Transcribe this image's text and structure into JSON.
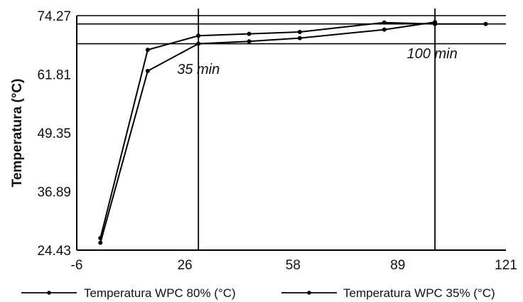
{
  "chart_data": {
    "type": "line",
    "ylabel": "Temperatura (°C)",
    "xlabel": "",
    "x_ticks": [
      "-6",
      "26",
      "58",
      "89",
      "121"
    ],
    "y_ticks": [
      "24.43",
      "36.89",
      "49.35",
      "61.81",
      "74.27"
    ],
    "xlim": [
      -6,
      121
    ],
    "ylim": [
      24.43,
      74.27
    ],
    "grid": false,
    "legend_position": "bottom",
    "series": [
      {
        "name": "Temperatura WPC 80% (°C)",
        "x": [
          1,
          15,
          30,
          45,
          60,
          85,
          100,
          115
        ],
        "y": [
          27.0,
          67.0,
          70.0,
          70.4,
          70.8,
          72.8,
          72.5,
          72.5
        ]
      },
      {
        "name": "Temperatura WPC 35% (°C)",
        "x": [
          1,
          15,
          30,
          45,
          60,
          85,
          100
        ],
        "y": [
          26.0,
          62.5,
          68.3,
          68.8,
          69.5,
          71.3,
          72.9
        ]
      }
    ],
    "annotations": [
      {
        "text": "35 min",
        "x": 30
      },
      {
        "text": "100 min",
        "x": 100
      }
    ]
  }
}
